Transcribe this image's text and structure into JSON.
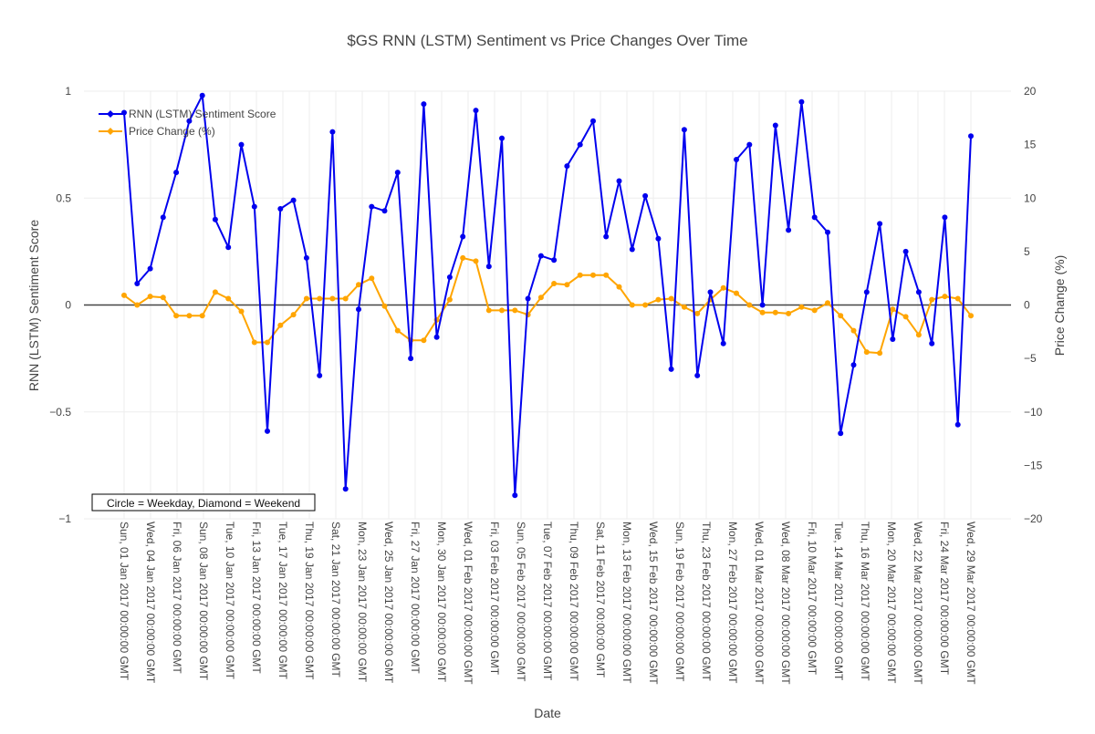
{
  "chart_data": {
    "type": "line",
    "title": "$GS RNN (LSTM) Sentiment vs Price Changes Over Time",
    "xlabel": "Date",
    "ylabel_left": "RNN (LSTM) Sentiment Score",
    "ylabel_right": "Price Change (%)",
    "ylim_left": [
      -1,
      1
    ],
    "ylim_right": [
      -20,
      20
    ],
    "yticks_left": [
      "1",
      "0.5",
      "0",
      "−0.5",
      "−1"
    ],
    "yticks_right": [
      "20",
      "15",
      "10",
      "5",
      "0",
      "−5",
      "−10",
      "−15",
      "−20"
    ],
    "x_tick_labels": [
      "Sun, 01 Jan 2017 00:00:00 GMT",
      "Wed, 04 Jan 2017 00:00:00 GMT",
      "Fri, 06 Jan 2017 00:00:00 GMT",
      "Sun, 08 Jan 2017 00:00:00 GMT",
      "Tue, 10 Jan 2017 00:00:00 GMT",
      "Fri, 13 Jan 2017 00:00:00 GMT",
      "Tue, 17 Jan 2017 00:00:00 GMT",
      "Thu, 19 Jan 2017 00:00:00 GMT",
      "Sat, 21 Jan 2017 00:00:00 GMT",
      "Mon, 23 Jan 2017 00:00:00 GMT",
      "Wed, 25 Jan 2017 00:00:00 GMT",
      "Fri, 27 Jan 2017 00:00:00 GMT",
      "Mon, 30 Jan 2017 00:00:00 GMT",
      "Wed, 01 Feb 2017 00:00:00 GMT",
      "Fri, 03 Feb 2017 00:00:00 GMT",
      "Sun, 05 Feb 2017 00:00:00 GMT",
      "Tue, 07 Feb 2017 00:00:00 GMT",
      "Thu, 09 Feb 2017 00:00:00 GMT",
      "Sat, 11 Feb 2017 00:00:00 GMT",
      "Mon, 13 Feb 2017 00:00:00 GMT",
      "Wed, 15 Feb 2017 00:00:00 GMT",
      "Sun, 19 Feb 2017 00:00:00 GMT",
      "Thu, 23 Feb 2017 00:00:00 GMT",
      "Mon, 27 Feb 2017 00:00:00 GMT",
      "Wed, 01 Mar 2017 00:00:00 GMT",
      "Wed, 08 Mar 2017 00:00:00 GMT",
      "Fri, 10 Mar 2017 00:00:00 GMT",
      "Tue, 14 Mar 2017 00:00:00 GMT",
      "Thu, 16 Mar 2017 00:00:00 GMT",
      "Mon, 20 Mar 2017 00:00:00 GMT",
      "Wed, 22 Mar 2017 00:00:00 GMT",
      "Fri, 24 Mar 2017 00:00:00 GMT",
      "Wed, 29 Mar 2017 00:00:00 GMT"
    ],
    "series": [
      {
        "name": "RNN (LSTM) Sentiment Score",
        "axis": "left",
        "color": "#0000ee",
        "values": [
          0.9,
          0.1,
          0.17,
          0.41,
          0.62,
          0.86,
          0.98,
          0.4,
          0.27,
          0.75,
          0.46,
          -0.59,
          0.45,
          0.49,
          0.22,
          -0.33,
          0.81,
          -0.86,
          -0.02,
          0.46,
          0.44,
          0.62,
          -0.25,
          0.94,
          -0.15,
          0.13,
          0.32,
          0.91,
          0.18,
          0.78,
          -0.89,
          0.03,
          0.23,
          0.21,
          0.65,
          0.75,
          0.86,
          0.32,
          0.58,
          0.26,
          0.51,
          0.31,
          -0.3,
          0.82,
          -0.33,
          0.06,
          -0.18,
          0.68,
          0.75,
          0.0,
          0.84,
          0.35,
          0.95,
          0.41,
          0.34,
          -0.6,
          -0.28,
          0.06,
          0.38,
          -0.16,
          0.25,
          0.06,
          -0.18,
          0.41,
          -0.56,
          0.79
        ]
      },
      {
        "name": "Price Change (%)",
        "axis": "right",
        "color": "#ffa500",
        "values": [
          0.9,
          0.0,
          0.8,
          0.7,
          -1.0,
          -1.0,
          -1.0,
          1.2,
          0.6,
          -0.6,
          -3.5,
          -3.5,
          -1.9,
          -0.9,
          0.6,
          0.6,
          0.6,
          0.6,
          1.9,
          2.5,
          -0.1,
          -2.4,
          -3.3,
          -3.3,
          -1.4,
          0.5,
          4.4,
          4.1,
          -0.5,
          -0.5,
          -0.5,
          -0.9,
          0.7,
          2.0,
          1.9,
          2.8,
          2.8,
          2.8,
          1.7,
          0.0,
          0.0,
          0.5,
          0.6,
          -0.2,
          -0.8,
          0.5,
          1.6,
          1.1,
          0.0,
          -0.7,
          -0.7,
          -0.8,
          -0.2,
          -0.5,
          0.2,
          -1.0,
          -2.4,
          -4.4,
          -4.5,
          -0.4,
          -1.1,
          -2.8,
          0.5,
          0.8,
          0.6,
          -1.0
        ]
      }
    ],
    "legend_position": "top-left",
    "annotation": "Circle = Weekday, Diamond = Weekend",
    "grid": true
  }
}
